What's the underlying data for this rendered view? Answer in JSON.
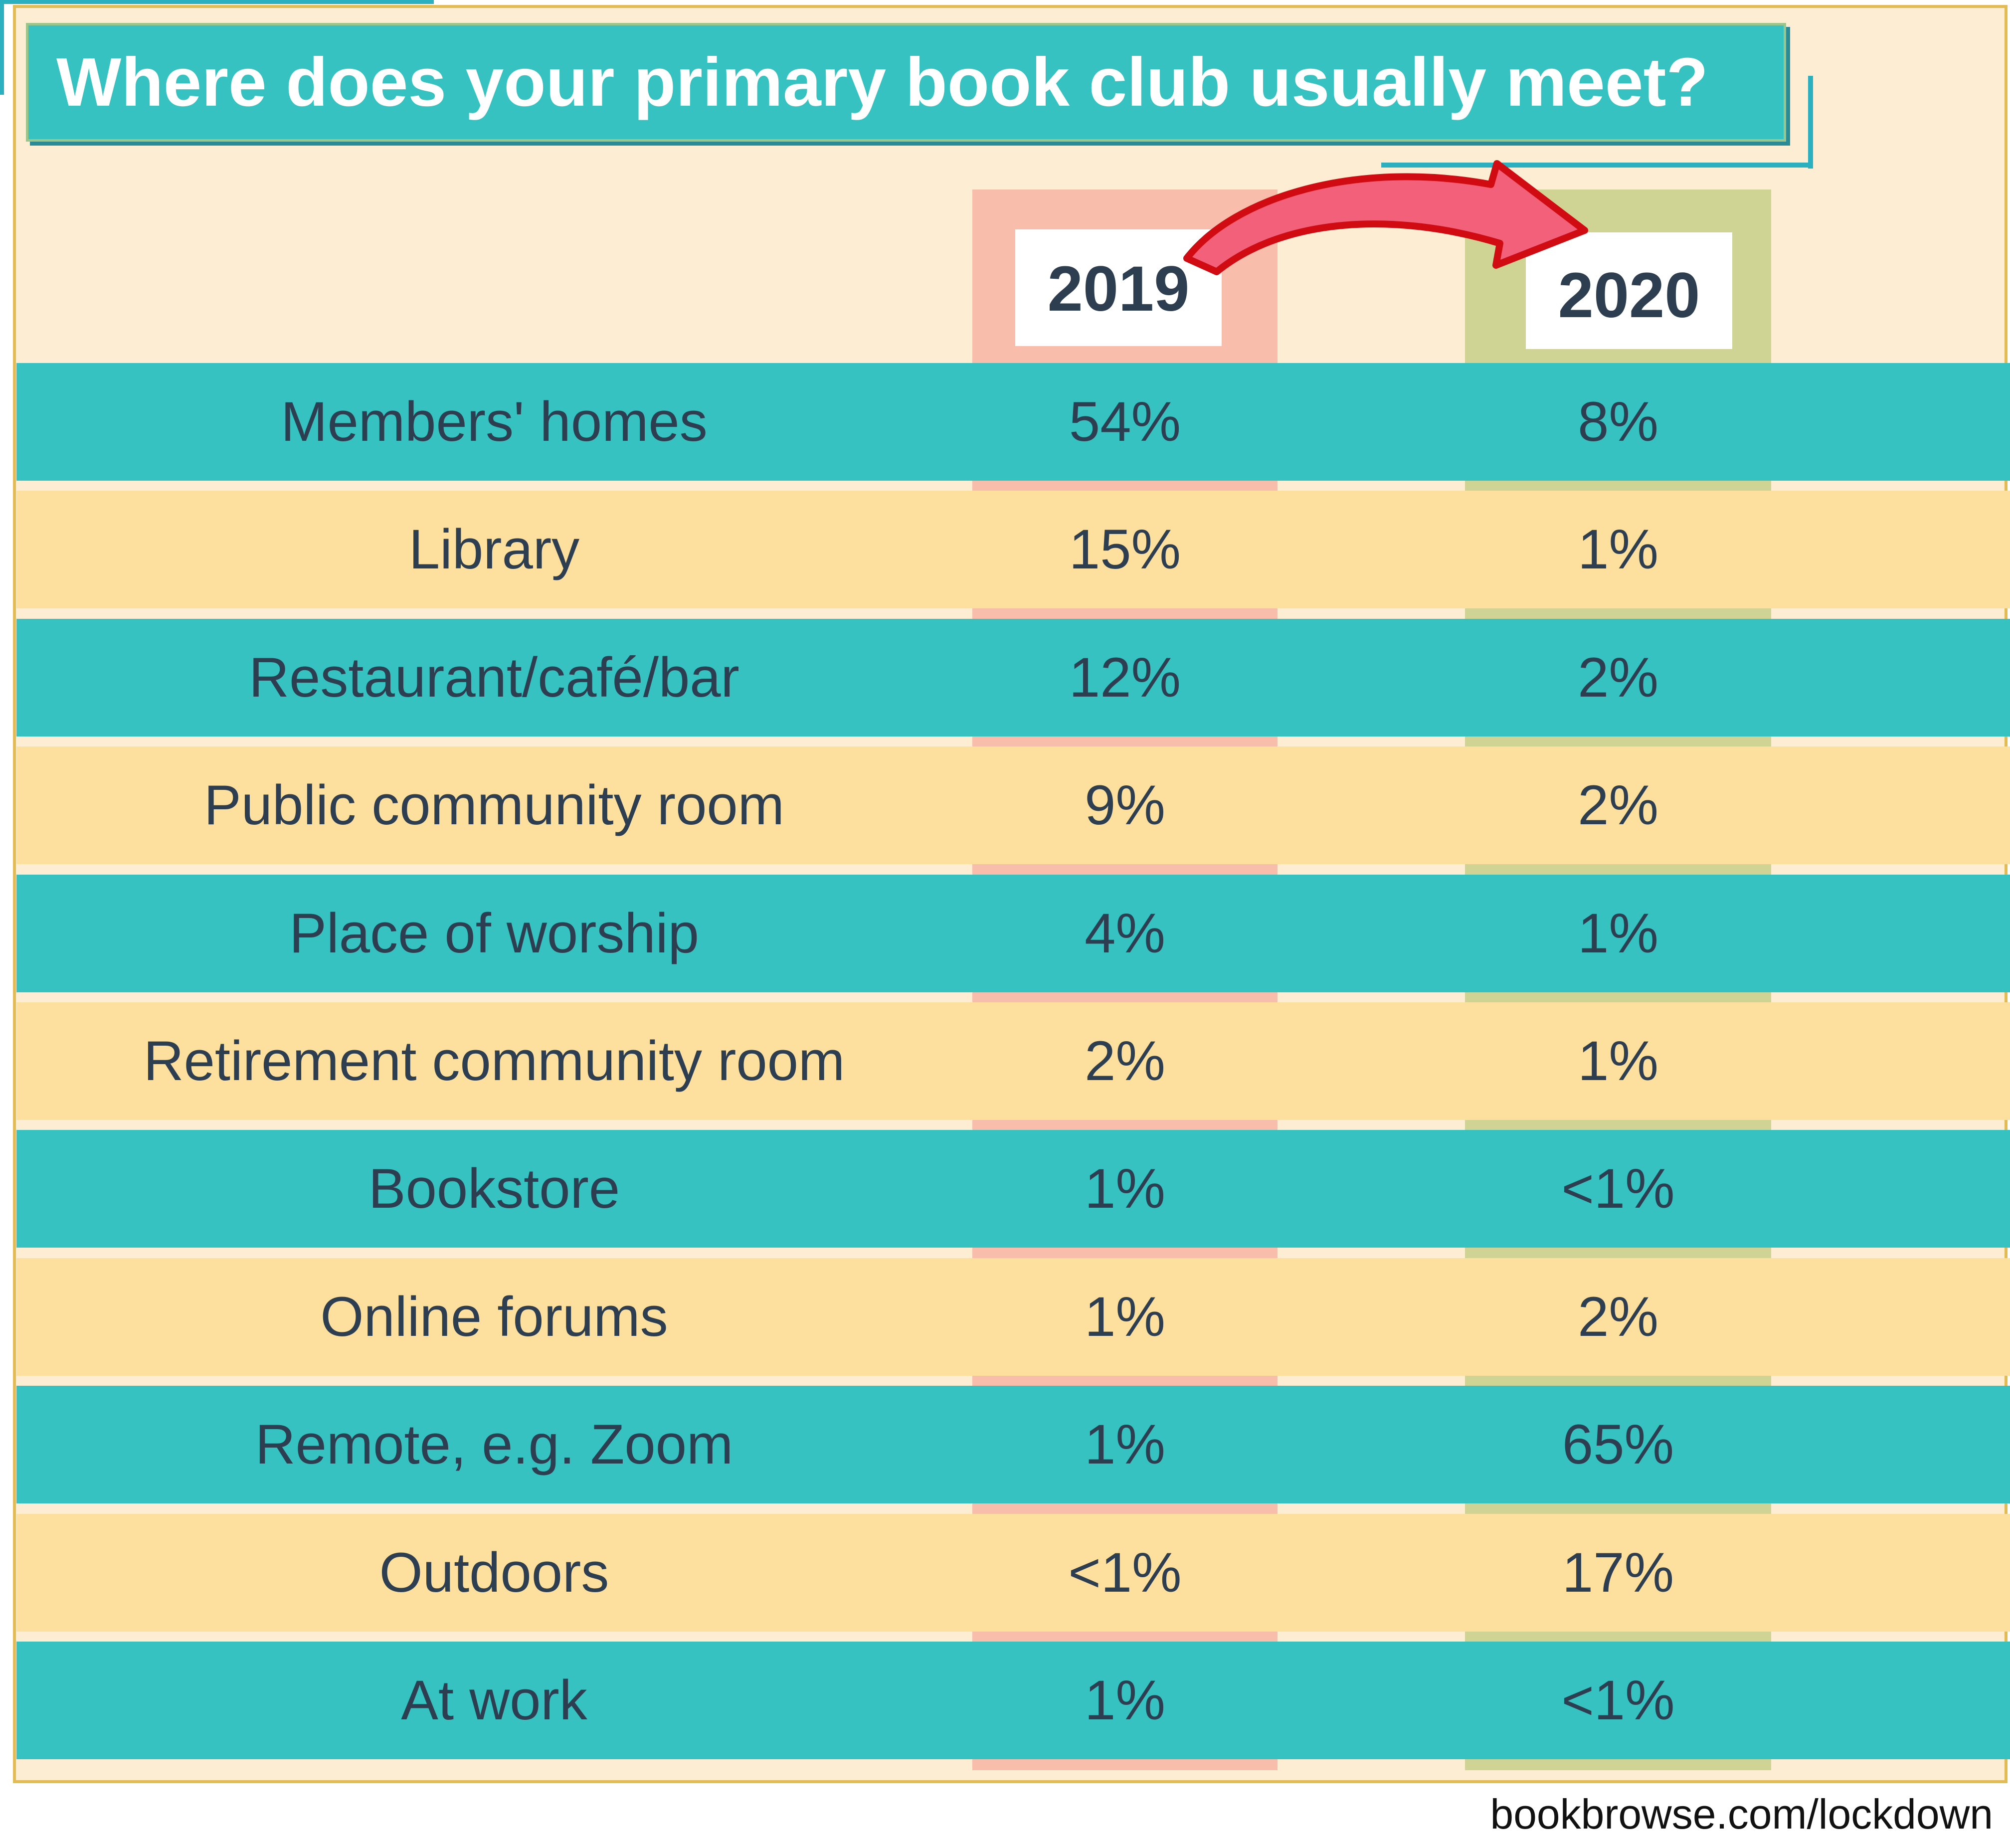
{
  "title": "Where does your primary book club usually meet?",
  "source": "bookbrowse.com/lockdown",
  "colors": {
    "teal_row": "#35c2c1",
    "yellow_row": "#fddf9e",
    "band_2019": "#f59688",
    "band_2020": "#a8c06a",
    "text": "#2d3e50",
    "arrow": "#f2607a"
  },
  "chart_data": {
    "type": "table",
    "title": "Where does your primary book club usually meet?",
    "columns": [
      "2019",
      "2020"
    ],
    "rows": [
      {
        "label": "Members' homes",
        "v2019": "54%",
        "v2020": "8%"
      },
      {
        "label": "Library",
        "v2019": "15%",
        "v2020": "1%"
      },
      {
        "label": "Restaurant/café/bar",
        "v2019": "12%",
        "v2020": "2%"
      },
      {
        "label": "Public community room",
        "v2019": "9%",
        "v2020": "2%"
      },
      {
        "label": "Place of worship",
        "v2019": "4%",
        "v2020": "1%"
      },
      {
        "label": "Retirement community room",
        "v2019": "2%",
        "v2020": "1%"
      },
      {
        "label": "Bookstore",
        "v2019": "1%",
        "v2020": "<1%"
      },
      {
        "label": "Online forums",
        "v2019": "1%",
        "v2020": "2%"
      },
      {
        "label": "Remote, e.g. Zoom",
        "v2019": "1%",
        "v2020": "65%"
      },
      {
        "label": "Outdoors",
        "v2019": "<1%",
        "v2020": "17%"
      },
      {
        "label": "At work",
        "v2019": "1%",
        "v2020": "<1%"
      }
    ]
  }
}
